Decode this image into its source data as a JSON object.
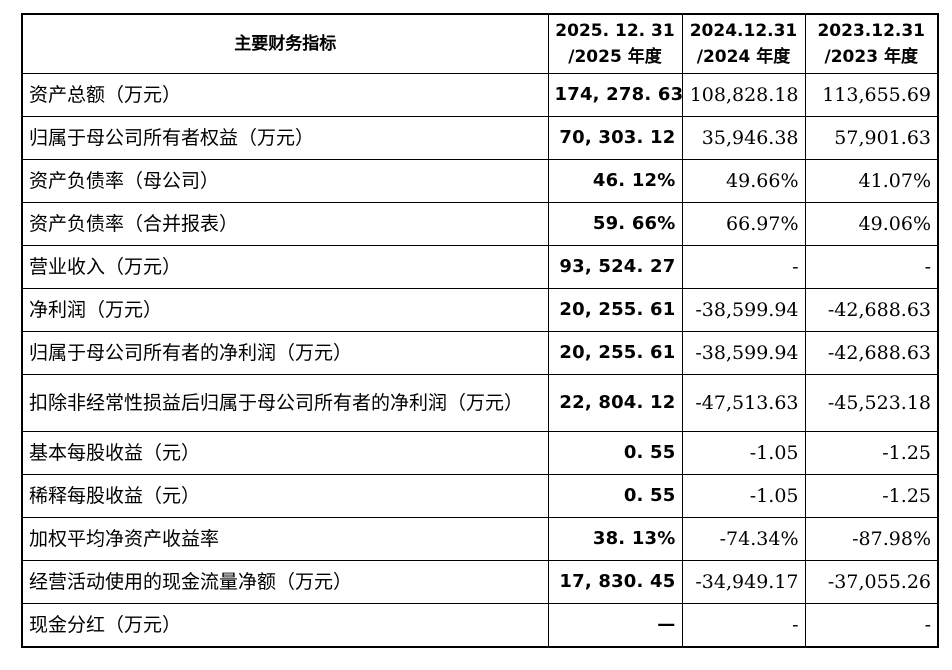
{
  "table": {
    "header": {
      "label": "主要财务指标",
      "col1_line1": "2025. 12. 31",
      "col1_line2": "/2025 年度",
      "col2_line1": "2024.12.31",
      "col2_line2": "/2024 年度",
      "col3_line1": "2023.12.31",
      "col3_line2": "/2023 年度"
    },
    "rows": [
      {
        "label": "资产总额（万元）",
        "v2025": "174, 278. 63",
        "v2024": "108,828.18",
        "v2023": "113,655.69"
      },
      {
        "label": "归属于母公司所有者权益（万元）",
        "v2025": "70, 303. 12",
        "v2024": "35,946.38",
        "v2023": "57,901.63"
      },
      {
        "label": "资产负债率（母公司）",
        "v2025": "46. 12%",
        "v2024": "49.66%",
        "v2023": "41.07%"
      },
      {
        "label": "资产负债率（合并报表）",
        "v2025": "59. 66%",
        "v2024": "66.97%",
        "v2023": "49.06%"
      },
      {
        "label": "营业收入（万元）",
        "v2025": "93, 524. 27",
        "v2024": "-",
        "v2023": "-"
      },
      {
        "label": "净利润（万元）",
        "v2025": "20, 255. 61",
        "v2024": "-38,599.94",
        "v2023": "-42,688.63"
      },
      {
        "label": "归属于母公司所有者的净利润（万元）",
        "v2025": "20, 255. 61",
        "v2024": "-38,599.94",
        "v2023": "-42,688.63"
      },
      {
        "label": "扣除非经常性损益后归属于母公司所有者的净利润（万元）",
        "v2025": "22, 804. 12",
        "v2024": "-47,513.63",
        "v2023": "-45,523.18"
      },
      {
        "label": "基本每股收益（元）",
        "v2025": "0. 55",
        "v2024": "-1.05",
        "v2023": "-1.25"
      },
      {
        "label": "稀释每股收益（元）",
        "v2025": "0. 55",
        "v2024": "-1.05",
        "v2023": "-1.25"
      },
      {
        "label": "加权平均净资产收益率",
        "v2025": "38. 13%",
        "v2024": "-74.34%",
        "v2023": "-87.98%"
      },
      {
        "label": "经营活动使用的现金流量净额（万元）",
        "v2025": "17, 830. 45",
        "v2024": "-34,949.17",
        "v2023": "-37,055.26"
      },
      {
        "label": "现金分红（万元）",
        "v2025": "—",
        "v2024": "-",
        "v2023": "-"
      }
    ]
  }
}
